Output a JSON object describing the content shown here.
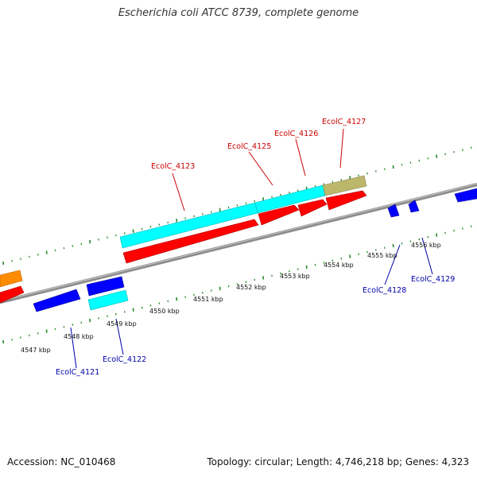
{
  "title": "Escherichia coli ATCC 8739, complete genome",
  "colors": {
    "label_top": "#cc0000",
    "label_bottom": "#0000aa",
    "tick": "#2a8a2a",
    "backbone": "#8c8c8c",
    "cyan": "#00ffff",
    "red": "#ff0000",
    "blue": "#0000ff",
    "orange": "#ff8c00",
    "tan": "#bdb76b"
  },
  "scale": {
    "ticks": [
      {
        "label": "4547 kbp"
      },
      {
        "label": "4548 kbp"
      },
      {
        "label": "4549 kbp"
      },
      {
        "label": "4550 kbp"
      },
      {
        "label": "4551 kbp"
      },
      {
        "label": "4552 kbp"
      },
      {
        "label": "4553 kbp"
      },
      {
        "label": "4554 kbp"
      },
      {
        "label": "4555 kbp"
      },
      {
        "label": "4556 kbp"
      }
    ]
  },
  "gene_labels": {
    "top": [
      {
        "name": "EcolC_4123"
      },
      {
        "name": "EcolC_4125"
      },
      {
        "name": "EcolC_4126"
      },
      {
        "name": "EcolC_4127"
      }
    ],
    "bottom": [
      {
        "name": "EcolC_4121"
      },
      {
        "name": "EcolC_4122"
      },
      {
        "name": "EcolC_4128"
      },
      {
        "name": "EcolC_4129"
      }
    ]
  },
  "footer": {
    "accession": "Accession: NC_010468",
    "topology": "Topology: circular; Length: 4,746,218 bp; Genes: 4,323"
  }
}
